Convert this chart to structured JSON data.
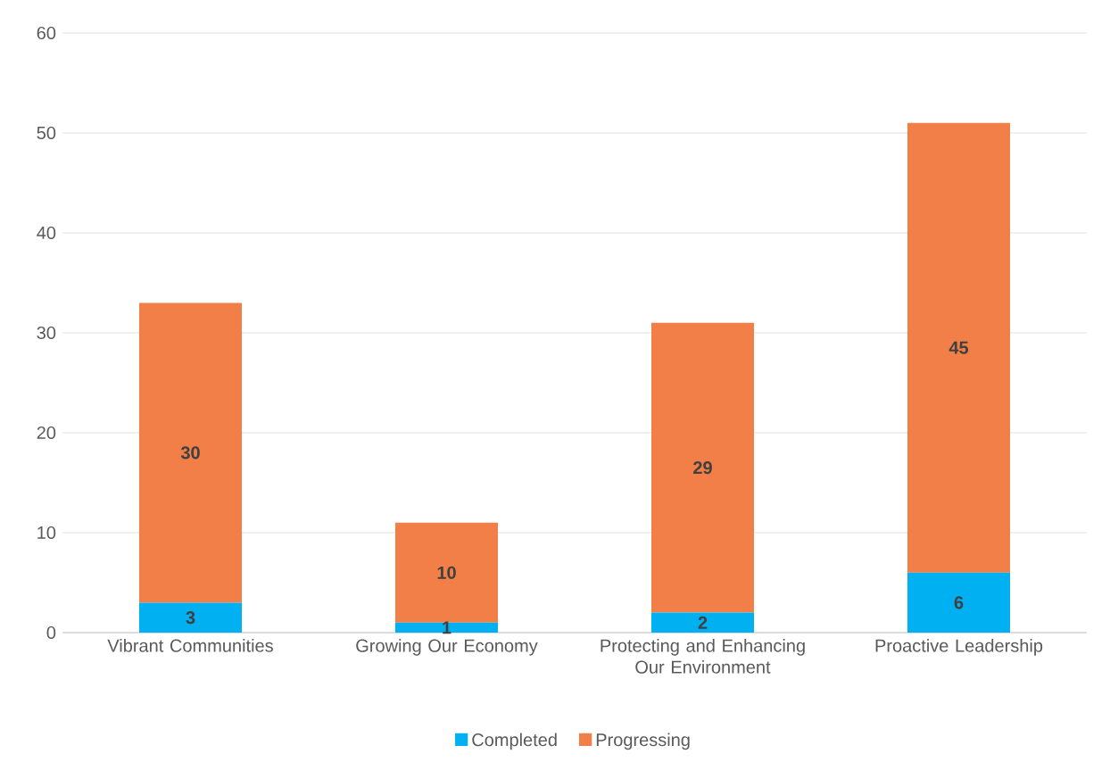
{
  "chart_data": {
    "type": "bar",
    "stacked": true,
    "categories": [
      "Vibrant Communities",
      "Growing Our Economy",
      "Protecting and Enhancing Our Environment",
      "Proactive Leadership"
    ],
    "series": [
      {
        "name": "Completed",
        "color": "#00b0f0",
        "values": [
          3,
          1,
          2,
          6
        ]
      },
      {
        "name": "Progressing",
        "color": "#f27f48",
        "values": [
          30,
          10,
          29,
          45
        ]
      }
    ],
    "ylim": [
      0,
      60
    ],
    "yticks": [
      0,
      10,
      20,
      30,
      40,
      50,
      60
    ],
    "grid": "y",
    "legend": "bottom",
    "data_labels": true
  }
}
